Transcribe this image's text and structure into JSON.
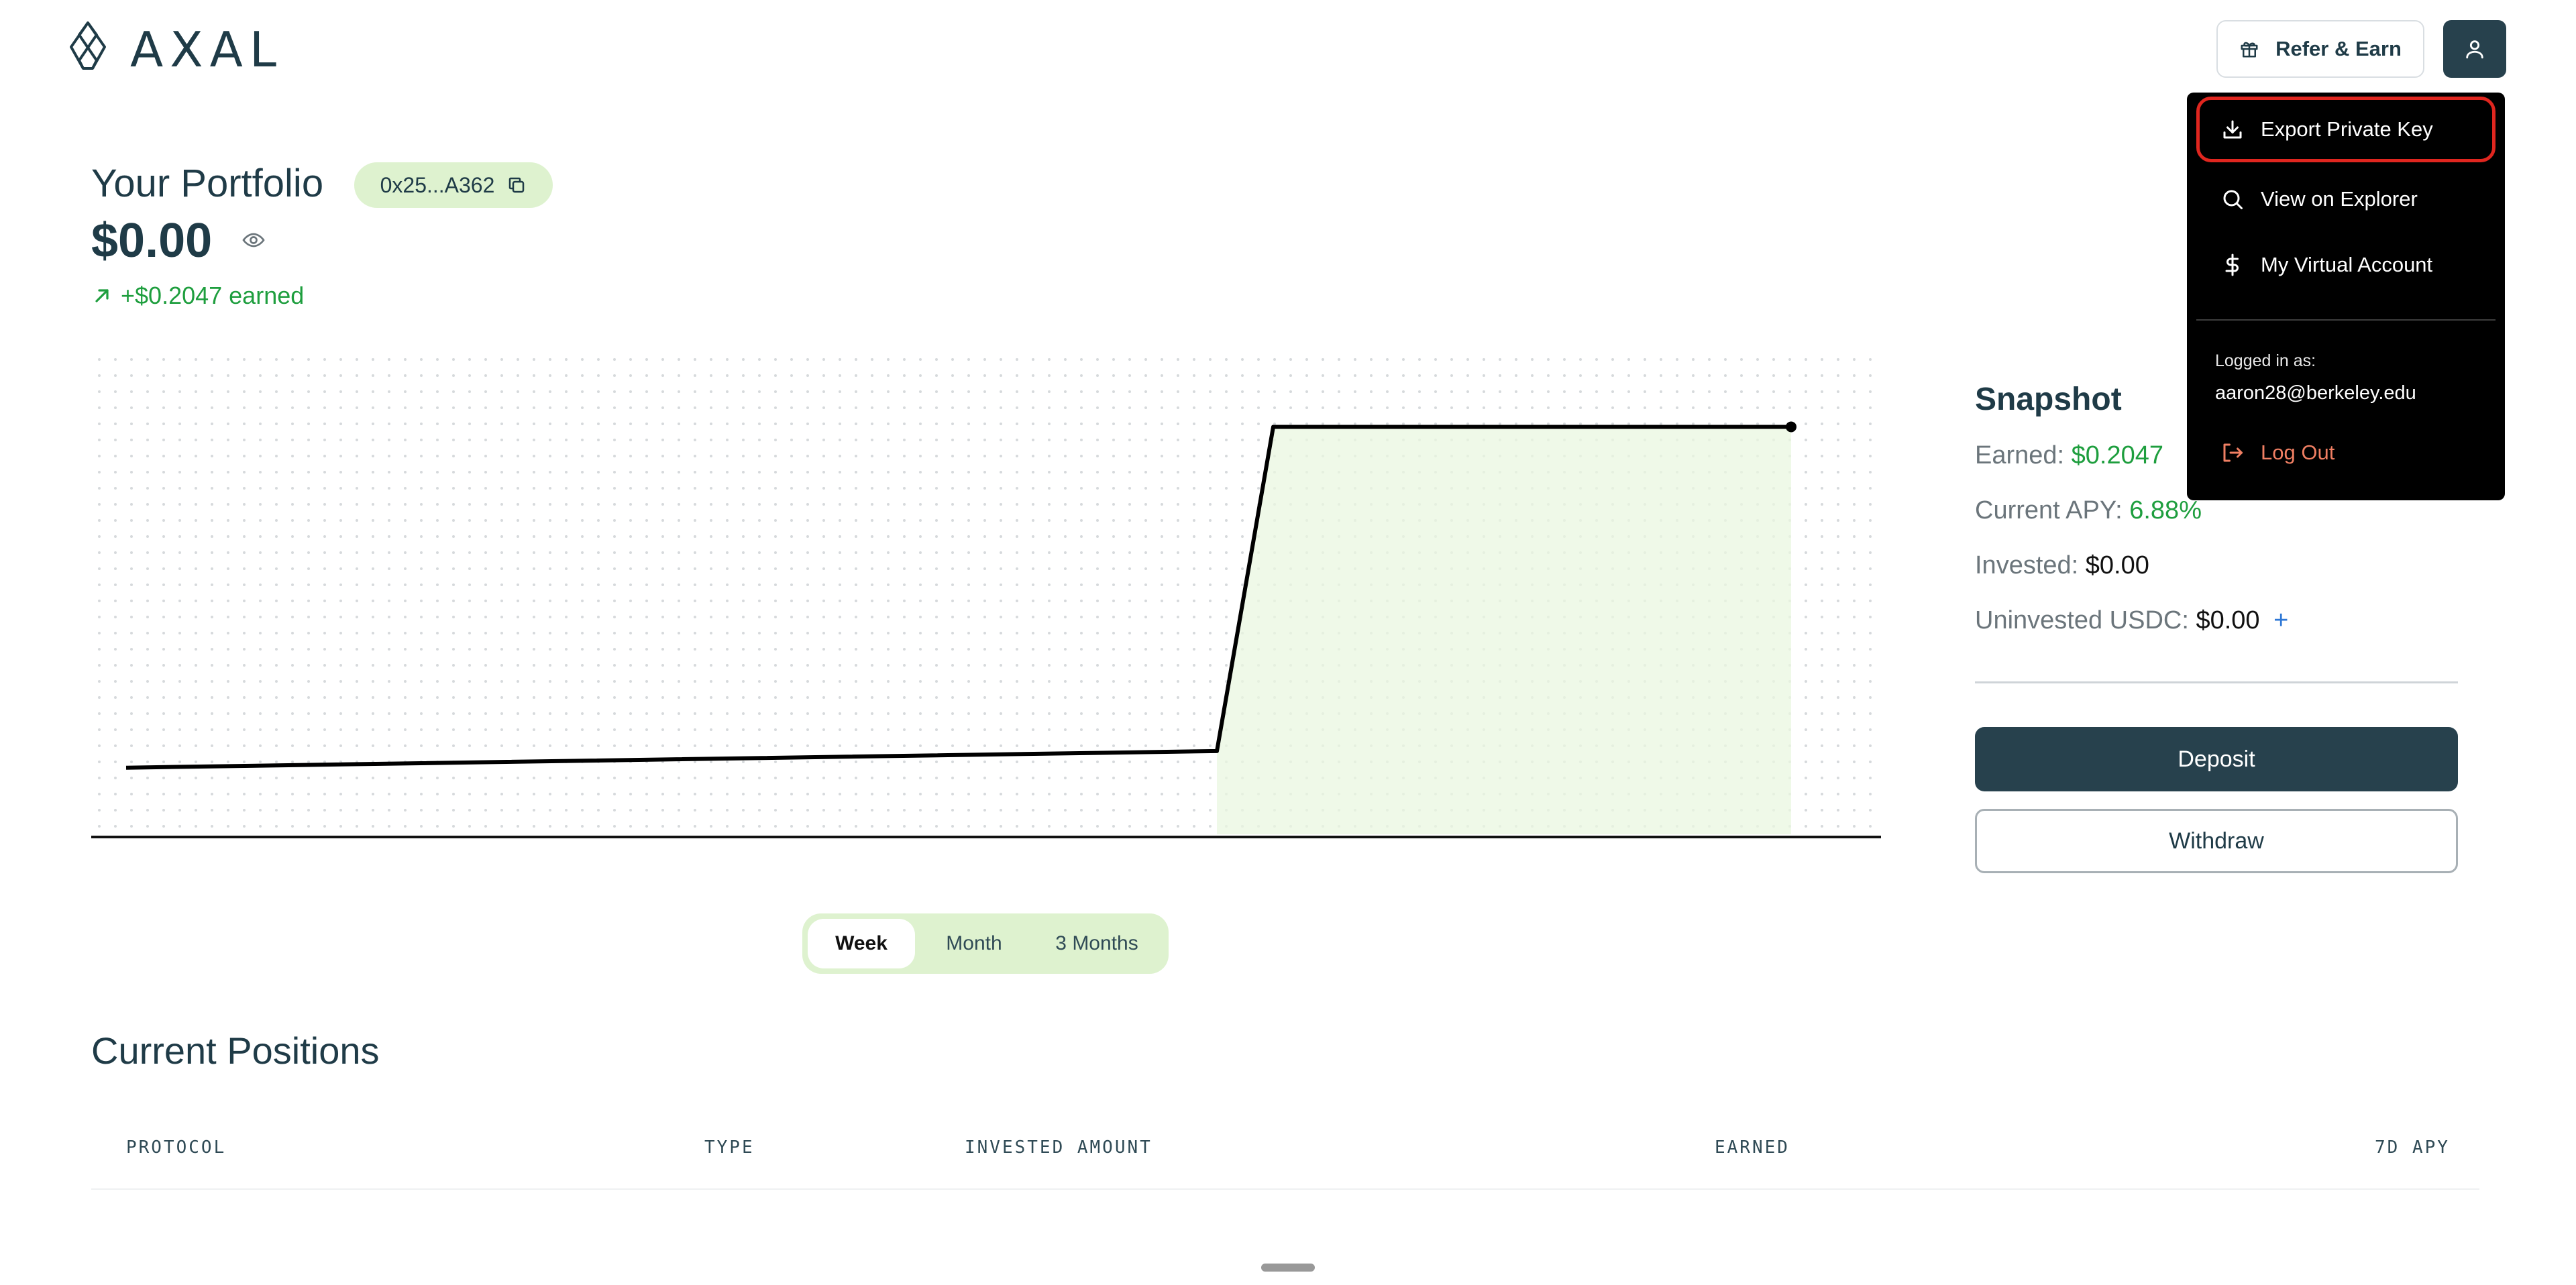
{
  "header": {
    "logo_text": "AXAL",
    "refer_label": "Refer & Earn"
  },
  "user_menu": {
    "items": [
      {
        "label": "Export Private Key",
        "icon": "download-icon",
        "highlighted": true
      },
      {
        "label": "View on Explorer",
        "icon": "search-icon"
      },
      {
        "label": "My Virtual Account",
        "icon": "dollar-icon"
      }
    ],
    "logged_in_label": "Logged in as:",
    "email": "aaron28@berkeley.edu",
    "logout_label": "Log Out",
    "colors": {
      "highlight_border": "#e0261f",
      "logout": "#f07f63"
    }
  },
  "portfolio": {
    "title": "Your Portfolio",
    "address": "0x25...A362",
    "value": "$0.00",
    "earned": "+$0.2047 earned"
  },
  "chart_data": {
    "type": "area",
    "x": [
      0,
      1,
      2,
      3
    ],
    "values": [
      0.0,
      0.01,
      0.2047,
      0.2047
    ],
    "ylim": [
      -0.04,
      0.25
    ],
    "grid": "dotted",
    "colors": {
      "line": "#000000",
      "fill": "#e9f7e0"
    }
  },
  "periods": {
    "week": "Week",
    "month": "Month",
    "three_months": "3 Months",
    "active": "Week"
  },
  "positions": {
    "title": "Current Positions",
    "columns": [
      "PROTOCOL",
      "TYPE",
      "INVESTED AMOUNT",
      "EARNED",
      "7D APY"
    ]
  },
  "snapshot": {
    "title": "Snapshot",
    "earned_label": "Earned:",
    "earned_value": "$0.2047",
    "apy_label": "Current APY:",
    "apy_value": "6.88%",
    "invested_label": "Invested:",
    "invested_value": "$0.00",
    "uninvested_label": "Uninvested USDC:",
    "uninvested_value": "$0.00",
    "add_symbol": "+",
    "deposit_label": "Deposit",
    "withdraw_label": "Withdraw"
  },
  "colors": {
    "primary": "#27414d",
    "positive": "#1e9e3e",
    "pill": "#def2cf"
  }
}
